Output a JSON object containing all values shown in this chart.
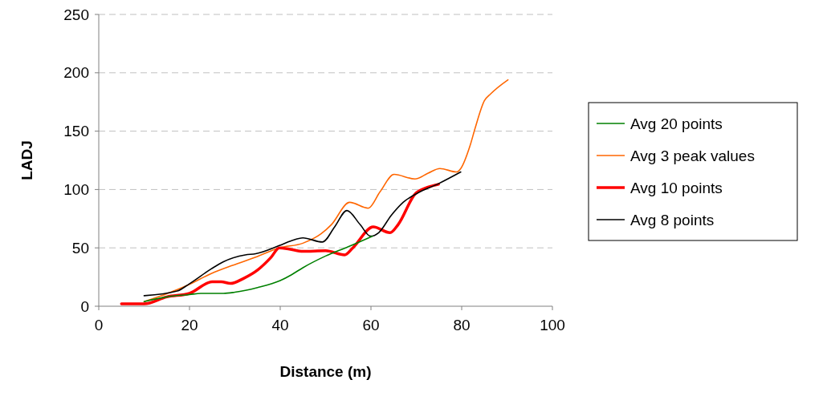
{
  "chart_data": {
    "type": "line",
    "xlabel": "Distance (m)",
    "ylabel": "LADJ",
    "xlim": [
      0,
      100
    ],
    "xticks": [
      0,
      20,
      40,
      60,
      80,
      100
    ],
    "ylim": [
      0,
      250
    ],
    "yticks": [
      0,
      50,
      100,
      150,
      200,
      250
    ],
    "grid": "y",
    "legend": "right",
    "marker": "none",
    "line_style": "solid",
    "series": [
      {
        "name": "Avg 20 points",
        "color": "#008000",
        "x": [
          10,
          15,
          20,
          22.5,
          27.5,
          30,
          35,
          40,
          42.5,
          45,
          50,
          55,
          60.3
        ],
        "values": [
          4,
          8,
          10,
          11,
          11,
          12,
          16,
          22,
          27,
          33,
          43,
          51,
          60
        ]
      },
      {
        "name": "Avg 3 peak values",
        "color": "#ff6600",
        "x": [
          10,
          14.5,
          19.6,
          24.8,
          29.5,
          34.6,
          39.8,
          45,
          49,
          51.3,
          55.3,
          59.4,
          62,
          65.1,
          69.7,
          72.6,
          75.2,
          78.9,
          79.8,
          81.8,
          83,
          85,
          86.4,
          90.2
        ],
        "values": [
          4,
          10,
          18,
          28,
          35,
          42,
          50,
          54,
          62,
          70,
          89,
          84,
          98,
          113,
          109,
          114,
          118,
          115,
          118,
          137,
          153,
          176,
          182,
          194
        ]
      },
      {
        "name": "Avg 10 points",
        "color": "#ff0000",
        "x": [
          5,
          10,
          15,
          20,
          25,
          27,
          29,
          32,
          35,
          38,
          39.8,
          42,
          45,
          50,
          54.2,
          56,
          60.5,
          64.2,
          66,
          69.7,
          72.6,
          74.9
        ],
        "values": [
          2,
          2,
          8,
          11,
          21,
          21,
          19.5,
          24,
          31,
          42,
          50,
          49,
          47,
          47.5,
          44,
          50,
          68,
          63,
          70,
          96,
          102,
          104.5
        ]
      },
      {
        "name": "Avg 8 points",
        "color": "#000000",
        "x": [
          10,
          17.3,
          19.9,
          24.8,
          27.4,
          32.3,
          34.6,
          39.8,
          42.4,
          45,
          49.3,
          52,
          54.7,
          57.6,
          59.9,
          61.7,
          64.5,
          67.1,
          70.3,
          74.9,
          79.8
        ],
        "values": [
          9,
          13,
          19,
          32,
          38,
          44,
          45,
          52,
          56,
          58.5,
          55,
          68,
          82,
          70,
          60,
          63,
          78,
          89,
          97,
          105,
          115
        ]
      }
    ]
  }
}
